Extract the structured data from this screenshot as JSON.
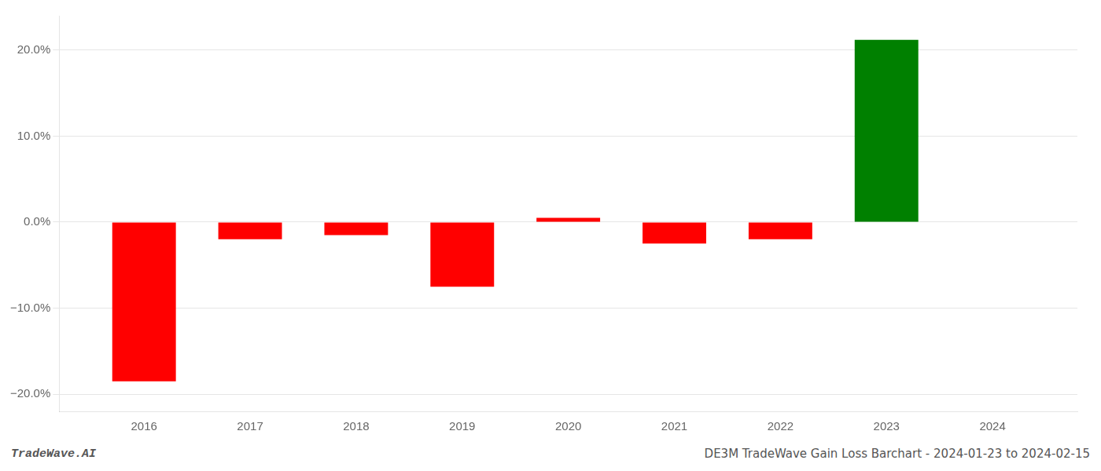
{
  "chart_data": {
    "type": "bar",
    "x": [
      2016,
      2017,
      2018,
      2019,
      2020,
      2021,
      2022,
      2023
    ],
    "values": [
      -18.5,
      -2.0,
      -1.5,
      -7.5,
      0.5,
      -2.5,
      -2.0,
      21.2
    ],
    "colors": [
      "#ff0000",
      "#ff0000",
      "#ff0000",
      "#ff0000",
      "#ff0000",
      "#ff0000",
      "#ff0000",
      "#008000"
    ],
    "xlim": [
      2015.2,
      2024.8
    ],
    "xticks": [
      2016,
      2017,
      2018,
      2019,
      2020,
      2021,
      2022,
      2023,
      2024
    ],
    "ylim": [
      -22,
      24
    ],
    "yticks": [
      {
        "value": -20,
        "label": "−20.0%"
      },
      {
        "value": -10,
        "label": "−10.0%"
      },
      {
        "value": 0,
        "label": "0.0%"
      },
      {
        "value": 10,
        "label": "10.0%"
      },
      {
        "value": 20,
        "label": "20.0%"
      }
    ],
    "grid": true,
    "annotations": [
      "TradeWave.AI",
      "DE3M TradeWave Gain Loss Barchart - 2024-01-23 to 2024-02-15"
    ]
  }
}
